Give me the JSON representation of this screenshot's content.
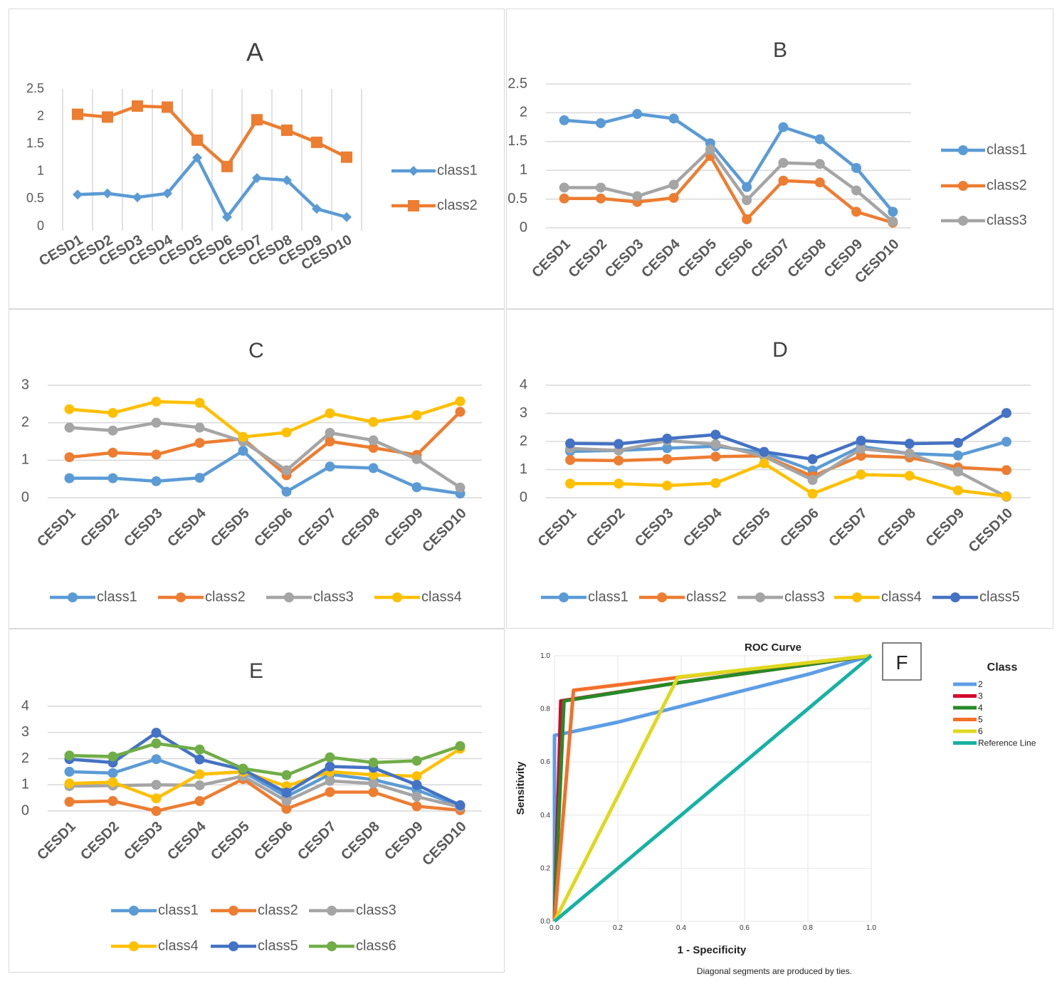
{
  "chart_data": [
    {
      "panel": "A",
      "type": "line",
      "title": "A",
      "categories": [
        "CESD1",
        "CESD2",
        "CESD3",
        "CESD4",
        "CESD5",
        "CESD6",
        "CESD7",
        "CESD8",
        "CESD9",
        "CESD10"
      ],
      "ylim": [
        0,
        2.5
      ],
      "yticks": [
        "0",
        "0.5",
        "1",
        "1.5",
        "2",
        "2.5"
      ],
      "ytick_values": [
        0,
        0.5,
        1,
        1.5,
        2,
        2.5
      ],
      "grid": "vertical",
      "legend": "right",
      "series": [
        {
          "name": "class1",
          "color": "#5b9bd5",
          "marker": "diamond",
          "values": [
            0.58,
            0.6,
            0.53,
            0.6,
            1.25,
            0.17,
            0.88,
            0.84,
            0.32,
            0.17
          ]
        },
        {
          "name": "class2",
          "color": "#ed7d31",
          "marker": "square",
          "values": [
            2.04,
            1.99,
            2.19,
            2.17,
            1.57,
            1.09,
            1.94,
            1.75,
            1.53,
            1.26
          ]
        }
      ]
    },
    {
      "panel": "B",
      "type": "line",
      "title": "B",
      "categories": [
        "CESD1",
        "CESD2",
        "CESD3",
        "CESD4",
        "CESD5",
        "CESD6",
        "CESD7",
        "CESD8",
        "CESD9",
        "CESD10"
      ],
      "ylim": [
        0,
        2.5
      ],
      "yticks": [
        "0",
        "0.5",
        "1",
        "1.5",
        "2",
        "2.5"
      ],
      "ytick_values": [
        0,
        0.5,
        1,
        1.5,
        2,
        2.5
      ],
      "grid": "horizontal",
      "legend": "right",
      "series": [
        {
          "name": "class1",
          "color": "#5b9bd5",
          "marker": "circle",
          "values": [
            1.87,
            1.82,
            1.98,
            1.9,
            1.47,
            0.71,
            1.75,
            1.54,
            1.04,
            0.28
          ]
        },
        {
          "name": "class2",
          "color": "#ed7d31",
          "marker": "circle",
          "values": [
            0.51,
            0.51,
            0.45,
            0.52,
            1.25,
            0.15,
            0.82,
            0.79,
            0.28,
            0.09
          ]
        },
        {
          "name": "class3",
          "color": "#a5a5a5",
          "marker": "circle",
          "values": [
            0.7,
            0.7,
            0.55,
            0.75,
            1.36,
            0.48,
            1.13,
            1.11,
            0.65,
            0.11
          ]
        }
      ]
    },
    {
      "panel": "C",
      "type": "line",
      "title": "C",
      "categories": [
        "CESD1",
        "CESD2",
        "CESD3",
        "CESD4",
        "CESD5",
        "CESD6",
        "CESD7",
        "CESD8",
        "CESD9",
        "CESD10"
      ],
      "ylim": [
        0,
        3
      ],
      "yticks": [
        "0",
        "1",
        "2",
        "3"
      ],
      "ytick_values": [
        0,
        1,
        2,
        3
      ],
      "grid": "horizontal",
      "legend": "bottom",
      "series": [
        {
          "name": "class1",
          "color": "#5b9bd5",
          "marker": "circle",
          "values": [
            0.52,
            0.52,
            0.44,
            0.53,
            1.25,
            0.16,
            0.83,
            0.79,
            0.28,
            0.11
          ]
        },
        {
          "name": "class2",
          "color": "#ed7d31",
          "marker": "circle",
          "values": [
            1.08,
            1.2,
            1.15,
            1.46,
            1.57,
            0.6,
            1.5,
            1.33,
            1.14,
            2.29
          ]
        },
        {
          "name": "class3",
          "color": "#a5a5a5",
          "marker": "circle",
          "values": [
            1.87,
            1.79,
            2.0,
            1.87,
            1.5,
            0.73,
            1.73,
            1.53,
            1.03,
            0.27
          ]
        },
        {
          "name": "class4",
          "color": "#ffc000",
          "marker": "circle",
          "values": [
            2.36,
            2.26,
            2.56,
            2.53,
            1.62,
            1.74,
            2.25,
            2.02,
            2.2,
            2.57
          ]
        }
      ]
    },
    {
      "panel": "D",
      "type": "line",
      "title": "D",
      "categories": [
        "CESD1",
        "CESD2",
        "CESD3",
        "CESD4",
        "CESD5",
        "CESD6",
        "CESD7",
        "CESD8",
        "CESD9",
        "CESD10"
      ],
      "ylim": [
        0,
        4
      ],
      "yticks": [
        "0",
        "1",
        "2",
        "3",
        "4"
      ],
      "ytick_values": [
        0,
        1,
        2,
        3,
        4
      ],
      "grid": "horizontal",
      "legend": "bottom",
      "series": [
        {
          "name": "class1",
          "color": "#5b9bd5",
          "marker": "circle",
          "values": [
            1.65,
            1.68,
            1.76,
            1.83,
            1.6,
            0.97,
            1.82,
            1.57,
            1.5,
            1.99
          ]
        },
        {
          "name": "class2",
          "color": "#ed7d31",
          "marker": "circle",
          "values": [
            1.34,
            1.32,
            1.37,
            1.46,
            1.49,
            0.76,
            1.49,
            1.43,
            1.08,
            0.98
          ]
        },
        {
          "name": "class3",
          "color": "#a5a5a5",
          "marker": "circle",
          "values": [
            1.75,
            1.68,
            2.03,
            1.9,
            1.47,
            0.63,
            1.74,
            1.57,
            0.93,
            0.03
          ]
        },
        {
          "name": "class4",
          "color": "#ffc000",
          "marker": "circle",
          "values": [
            0.5,
            0.5,
            0.43,
            0.52,
            1.22,
            0.14,
            0.82,
            0.78,
            0.26,
            0.05
          ]
        },
        {
          "name": "class5",
          "color": "#4472c4",
          "marker": "circle",
          "values": [
            1.93,
            1.91,
            2.1,
            2.24,
            1.63,
            1.37,
            2.03,
            1.92,
            1.95,
            3.01
          ]
        }
      ]
    },
    {
      "panel": "E",
      "type": "line",
      "title": "E",
      "categories": [
        "CESD1",
        "CESD2",
        "CESD3",
        "CESD4",
        "CESD5",
        "CESD6",
        "CESD7",
        "CESD8",
        "CESD9",
        "CESD10"
      ],
      "ylim": [
        0,
        4
      ],
      "yticks": [
        "0",
        "1",
        "2",
        "3",
        "4"
      ],
      "ytick_values": [
        0,
        1,
        2,
        3,
        4
      ],
      "grid": "horizontal",
      "legend": "bottom",
      "series": [
        {
          "name": "class1",
          "color": "#5b9bd5",
          "marker": "circle",
          "values": [
            1.5,
            1.45,
            1.98,
            1.4,
            1.5,
            0.55,
            1.4,
            1.2,
            0.8,
            0.2
          ]
        },
        {
          "name": "class2",
          "color": "#ed7d31",
          "marker": "circle",
          "values": [
            0.35,
            0.38,
            0.0,
            0.38,
            1.22,
            0.08,
            0.72,
            0.72,
            0.18,
            0.03
          ]
        },
        {
          "name": "class3",
          "color": "#a5a5a5",
          "marker": "circle",
          "values": [
            0.95,
            0.97,
            1.0,
            0.98,
            1.33,
            0.38,
            1.15,
            1.05,
            0.55,
            0.15
          ]
        },
        {
          "name": "class4",
          "color": "#ffc000",
          "marker": "circle",
          "values": [
            1.05,
            1.1,
            0.48,
            1.4,
            1.5,
            0.95,
            1.5,
            1.38,
            1.33,
            2.38
          ]
        },
        {
          "name": "class5",
          "color": "#4472c4",
          "marker": "circle",
          "values": [
            1.98,
            1.85,
            2.99,
            1.97,
            1.58,
            0.7,
            1.7,
            1.65,
            1.0,
            0.22
          ]
        },
        {
          "name": "class6",
          "color": "#70ad47",
          "marker": "circle",
          "values": [
            2.12,
            2.08,
            2.58,
            2.35,
            1.62,
            1.37,
            2.05,
            1.85,
            1.92,
            2.48
          ]
        }
      ]
    },
    {
      "panel": "F",
      "type": "line",
      "title": "ROC Curve",
      "label": "F",
      "xlabel": "1 - Specificity",
      "ylabel": "Sensitivity",
      "xlim": [
        0,
        1
      ],
      "ylim": [
        0,
        1
      ],
      "xticks": [
        "0.0",
        "0.2",
        "0.4",
        "0.6",
        "0.8",
        "1.0"
      ],
      "yticks": [
        "0.0",
        "0.2",
        "0.4",
        "0.6",
        "0.8",
        "1.0"
      ],
      "tick_values": [
        0,
        0.2,
        0.4,
        0.6,
        0.8,
        1.0
      ],
      "legend_title": "Class",
      "legend": "right",
      "footnote": "Diagonal segments are produced by ties.",
      "series": [
        {
          "name": "2",
          "color": "#5c9ee6",
          "points": [
            [
              0,
              0
            ],
            [
              0,
              0.7
            ],
            [
              0.2,
              0.75
            ],
            [
              0.4,
              0.81
            ],
            [
              0.6,
              0.87
            ],
            [
              0.8,
              0.93
            ],
            [
              1,
              1
            ]
          ]
        },
        {
          "name": "3",
          "color": "#d3072b",
          "points": [
            [
              0,
              0
            ],
            [
              0.02,
              0.83
            ],
            [
              0.4,
              0.9
            ],
            [
              1,
              1
            ]
          ]
        },
        {
          "name": "4",
          "color": "#268a26",
          "points": [
            [
              0,
              0.02
            ],
            [
              0.03,
              0.83
            ],
            [
              0.4,
              0.9
            ],
            [
              1,
              1
            ]
          ]
        },
        {
          "name": "5",
          "color": "#f56f29",
          "points": [
            [
              0,
              0
            ],
            [
              0.06,
              0.87
            ],
            [
              0.2,
              0.89
            ],
            [
              0.4,
              0.92
            ],
            [
              1,
              1
            ]
          ]
        },
        {
          "name": "6",
          "color": "#dfd81f",
          "points": [
            [
              0,
              0
            ],
            [
              0.39,
              0.92
            ],
            [
              1,
              1
            ]
          ]
        },
        {
          "name": "Reference Line",
          "color": "#16b2a4",
          "points": [
            [
              0,
              0
            ],
            [
              1,
              1
            ]
          ]
        }
      ]
    }
  ]
}
